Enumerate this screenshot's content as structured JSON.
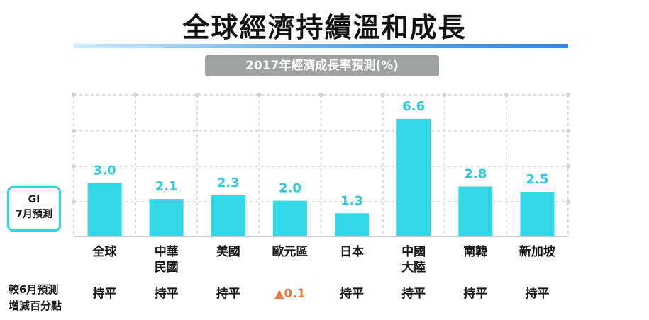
{
  "header": {
    "title": "全球經濟持續溫和成長",
    "subtitle": "2017年經濟成長率預測(%)"
  },
  "legend_box": {
    "line1": "GI",
    "line2": "7月預測"
  },
  "compare_row": {
    "label_line1": "較6月預測",
    "label_line2": "增減百分點",
    "values": [
      "持平",
      "持平",
      "持平",
      "▲0.1",
      "持平",
      "持平",
      "持平",
      "持平"
    ]
  },
  "colors": {
    "bar": "#32d8e6",
    "value_label": "#2ec9db",
    "grid": "#d4d4d4",
    "increase": "#ef7a40",
    "text": "#1a1a1a"
  },
  "chart_data": {
    "type": "bar",
    "categories": [
      [
        "全球"
      ],
      [
        "中華",
        "民國"
      ],
      [
        "美國"
      ],
      [
        "歐元區"
      ],
      [
        "日本"
      ],
      [
        "中國",
        "大陸"
      ],
      [
        "南韓"
      ],
      [
        "新加坡"
      ]
    ],
    "values": [
      3.0,
      2.1,
      2.3,
      2.0,
      1.3,
      6.6,
      2.8,
      2.5
    ],
    "value_labels": [
      "3.0",
      "2.1",
      "2.3",
      "2.0",
      "1.3",
      "6.6",
      "2.8",
      "2.5"
    ],
    "title": "2017年經濟成長率預測(%)",
    "series_name": "7月預測",
    "ylim": [
      0,
      7.94
    ],
    "grid": true
  }
}
